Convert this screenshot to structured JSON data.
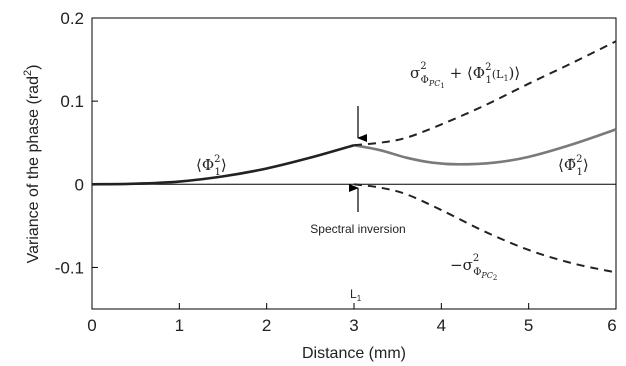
{
  "chart_data": {
    "type": "line",
    "xlabel": "Distance (mm)",
    "ylabel_main": "Variance of the phase (rad",
    "ylabel_exp": "2",
    "ylabel_close": ")",
    "xlim": [
      0,
      6
    ],
    "ylim": [
      -0.15,
      0.2
    ],
    "x_ticks": [
      {
        "value": 0,
        "label": "0"
      },
      {
        "value": 1,
        "label": "1"
      },
      {
        "value": 2,
        "label": "2"
      },
      {
        "value": 3,
        "label": "3"
      },
      {
        "value": 4,
        "label": "4"
      },
      {
        "value": 5,
        "label": "5"
      },
      {
        "value": 6,
        "label": "6"
      }
    ],
    "y_ticks": [
      {
        "value": 0.2,
        "label": "0.2"
      },
      {
        "value": 0.1,
        "label": "0.1"
      },
      {
        "value": 0,
        "label": "0"
      },
      {
        "value": -0.1,
        "label": "-0.1"
      }
    ],
    "reference_line_y": 0,
    "series": [
      {
        "key": "dark",
        "color": "#222222",
        "dash": false,
        "x": [
          0,
          0.5,
          1.0,
          1.5,
          2.0,
          2.5,
          3.0
        ],
        "y": [
          0,
          0.0007,
          0.0033,
          0.0095,
          0.019,
          0.032,
          0.047
        ]
      },
      {
        "key": "gray",
        "color": "#7a7a7a",
        "dash": false,
        "x": [
          3.0,
          3.3,
          3.6,
          3.9,
          4.2,
          4.6,
          5.0,
          5.5,
          6.0
        ],
        "y": [
          0.047,
          0.041,
          0.032,
          0.026,
          0.024,
          0.026,
          0.033,
          0.048,
          0.066
        ]
      },
      {
        "key": "upper-dashed",
        "color": "#222222",
        "dash": true,
        "x": [
          3.0,
          3.3,
          3.6,
          4.0,
          4.5,
          5.0,
          5.5,
          6.0
        ],
        "y": [
          0.047,
          0.05,
          0.056,
          0.072,
          0.095,
          0.121,
          0.146,
          0.172
        ]
      },
      {
        "key": "lower-dashed",
        "color": "#222222",
        "dash": true,
        "x": [
          3.0,
          3.3,
          3.6,
          4.0,
          4.5,
          5.0,
          5.5,
          6.0
        ],
        "y": [
          0,
          -0.004,
          -0.012,
          -0.031,
          -0.057,
          -0.079,
          -0.095,
          -0.106
        ]
      }
    ],
    "annotations": {
      "spectral_inversion": "Spectral inversion",
      "l1_marker": "L",
      "l1_sub": "1",
      "phi_label_left": {
        "open": "⟨Φ",
        "sup": "2",
        "sub": "1",
        "close": "⟩"
      },
      "phi_label_right": {
        "open": "⟨Φ̃",
        "sup": "2",
        "sub": "1",
        "close": "⟩"
      },
      "sum_label": {
        "sigma": "σ",
        "sup": "2",
        "sub": "Φ",
        "subsub_main": "PC",
        "subsub_num": "1",
        "plus": " + ⟨Φ",
        "phi_sup": "2",
        "phi_sub": "1",
        "arg": "(L",
        "arg_sub": "1",
        "arg_close": ")⟩"
      },
      "neg_label": {
        "minus": "−σ",
        "sup": "2",
        "sub": "Φ",
        "subsub_main": "PC",
        "subsub_num": "2"
      }
    }
  }
}
